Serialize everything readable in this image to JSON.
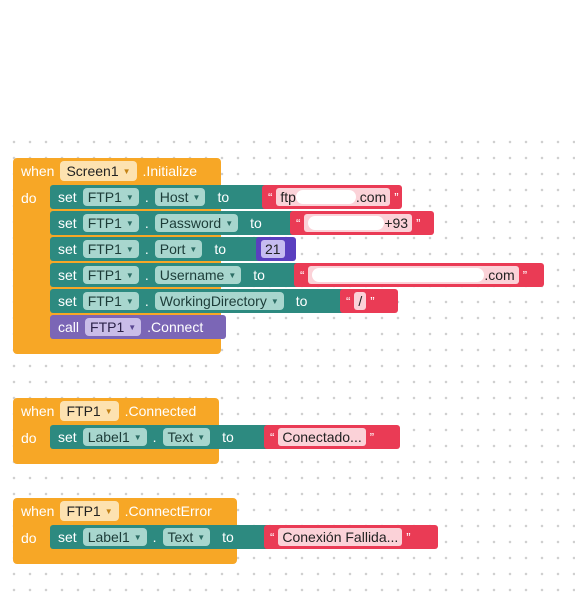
{
  "blocks": {
    "init": {
      "when": "when",
      "component": "Screen1",
      "event": ".Initialize",
      "do": "do",
      "statements": [
        {
          "kw": "set",
          "component": "FTP1",
          "dot": ".",
          "prop": "Host",
          "to": "to",
          "text_left": "ftp",
          "text_right": ".com"
        },
        {
          "kw": "set",
          "component": "FTP1",
          "dot": ".",
          "prop": "Password",
          "to": "to",
          "text_right": "+93"
        },
        {
          "kw": "set",
          "component": "FTP1",
          "dot": ".",
          "prop": "Port",
          "to": "to",
          "number": "21"
        },
        {
          "kw": "set",
          "component": "FTP1",
          "dot": ".",
          "prop": "Username",
          "to": "to",
          "text_right": ".com"
        },
        {
          "kw": "set",
          "component": "FTP1",
          "dot": ".",
          "prop": "WorkingDirectory",
          "to": "to",
          "text": "/"
        }
      ],
      "call": {
        "kw": "call",
        "component": "FTP1",
        "method": ".Connect"
      }
    },
    "connected": {
      "when": "when",
      "component": "FTP1",
      "event": ".Connected",
      "do": "do",
      "statement": {
        "kw": "set",
        "component": "Label1",
        "dot": ".",
        "prop": "Text",
        "to": "to",
        "text": "Conectado..."
      }
    },
    "connect_error": {
      "when": "when",
      "component": "FTP1",
      "event": ".ConnectError",
      "do": "do",
      "statement": {
        "kw": "set",
        "component": "Label1",
        "dot": ".",
        "prop": "Text",
        "to": "to",
        "text": "Conexión Fallida..."
      }
    }
  },
  "quote_open": "“",
  "quote_close": "”",
  "dropdown_arrow": "▼",
  "colors": {
    "event": "#f7a726",
    "setter": "#2d8a80",
    "call": "#7b66b6",
    "text": "#ea3b55",
    "number": "#5a3fbf"
  }
}
